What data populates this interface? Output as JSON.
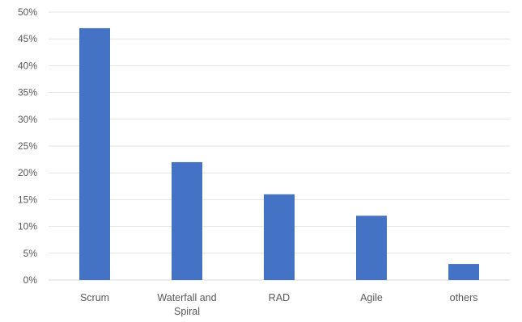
{
  "chart_data": {
    "type": "bar",
    "title": "",
    "xlabel": "",
    "ylabel": "",
    "categories": [
      [
        "Scrum"
      ],
      [
        "Waterfall and",
        "Spiral"
      ],
      [
        "RAD"
      ],
      [
        "Agile"
      ],
      [
        "others"
      ]
    ],
    "values": [
      47,
      22,
      16,
      12,
      3
    ],
    "unit": "%",
    "ylim": [
      0,
      50
    ],
    "yticks": [
      "0%",
      "5%",
      "10%",
      "15%",
      "20%",
      "25%",
      "30%",
      "35%",
      "40%",
      "45%",
      "50%"
    ],
    "bar_color": "#4472C4",
    "grid": true,
    "legend": "none"
  }
}
